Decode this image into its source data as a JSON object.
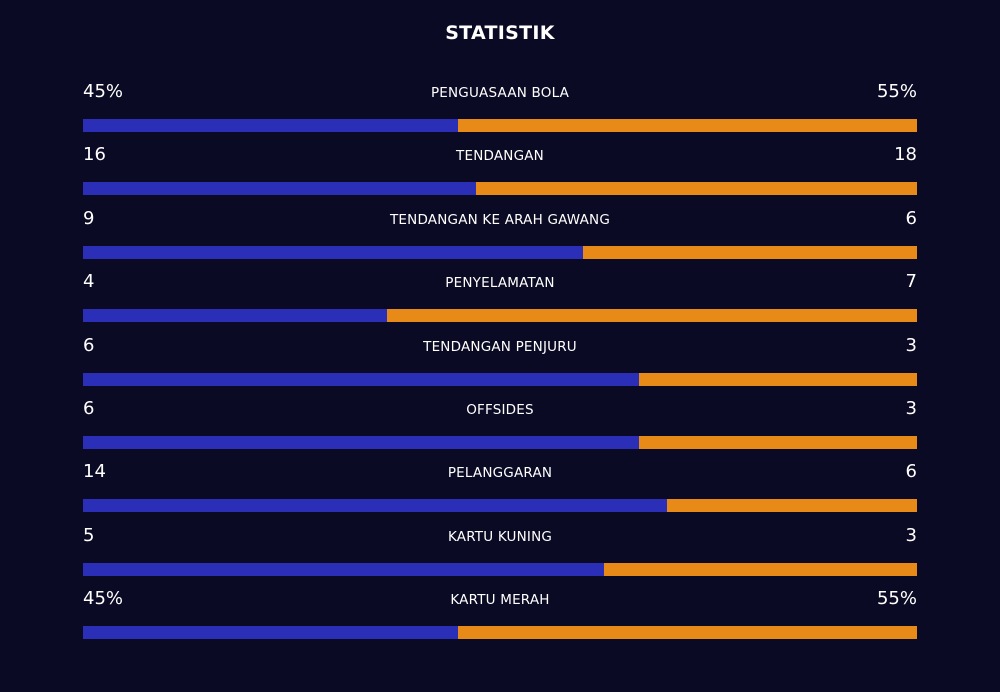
{
  "title": "STATISTIK",
  "colors": {
    "background": "#0a0a24",
    "home": "#2b2fb8",
    "away": "#e88a17",
    "text": "#ffffff"
  },
  "stats": [
    {
      "label": "PENGUASAAN BOLA",
      "home": "45%",
      "away": "55%",
      "home_share": 0.45
    },
    {
      "label": "TENDANGAN",
      "home": "16",
      "away": "18",
      "home_share": 0.471
    },
    {
      "label": "TENDANGAN KE ARAH GAWANG",
      "home": "9",
      "away": "6",
      "home_share": 0.6
    },
    {
      "label": "PENYELAMATAN",
      "home": "4",
      "away": "7",
      "home_share": 0.364
    },
    {
      "label": "TENDANGAN PENJURU",
      "home": "6",
      "away": "3",
      "home_share": 0.667
    },
    {
      "label": "OFFSIDES",
      "home": "6",
      "away": "3",
      "home_share": 0.667
    },
    {
      "label": "PELANGGARAN",
      "home": "14",
      "away": "6",
      "home_share": 0.7
    },
    {
      "label": "KARTU KUNING",
      "home": "5",
      "away": "3",
      "home_share": 0.625
    },
    {
      "label": "KARTU MERAH",
      "home": "45%",
      "away": "55%",
      "home_share": 0.45
    }
  ]
}
